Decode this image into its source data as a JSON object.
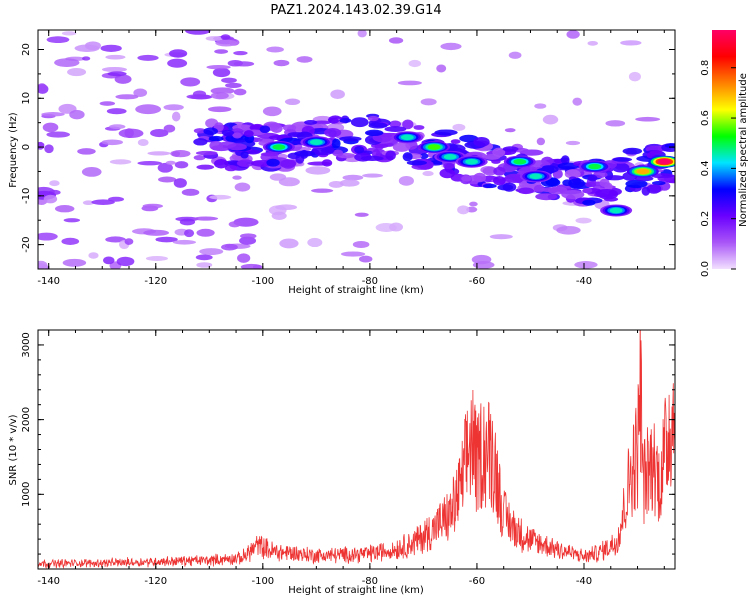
{
  "figure_title": "PAZ1.2024.143.02.39.G14",
  "chart_data": [
    {
      "type": "heatmap",
      "title": "PAZ1.2024.143.02.39.G14",
      "xlabel": "Height of straight line (km)",
      "ylabel": "Frequency (Hz)",
      "xlim": [
        -142,
        -23
      ],
      "ylim": [
        -25,
        24
      ],
      "x_ticks": [
        -140,
        -120,
        -100,
        -80,
        -60,
        -40
      ],
      "y_ticks": [
        -20,
        -10,
        0,
        10,
        20
      ],
      "colorbar": {
        "label": "Normalized spectral amplitude",
        "ticks": [
          0.0,
          0.2,
          0.4,
          0.6,
          0.8
        ],
        "range": [
          0,
          0.95
        ],
        "colormap": [
          "#f2e0ff",
          "#a955f7",
          "#6a00ff",
          "#0000ff",
          "#00e5ff",
          "#00ff00",
          "#ffff00",
          "#ff8000",
          "#ff0000",
          "#ff0066"
        ]
      },
      "ridge": {
        "x": [
          -142,
          -125,
          -110,
          -100,
          -90,
          -80,
          -70,
          -60,
          -50,
          -40,
          -30,
          -23
        ],
        "y": [
          -1,
          -1,
          0,
          0,
          1,
          2,
          0,
          -3,
          -5,
          -8,
          -5,
          -3
        ]
      },
      "hotspots": [
        {
          "x": -97,
          "y": 0,
          "amp": 0.5
        },
        {
          "x": -90,
          "y": 1,
          "amp": 0.45
        },
        {
          "x": -73,
          "y": 2,
          "amp": 0.45
        },
        {
          "x": -68,
          "y": 0,
          "amp": 0.55
        },
        {
          "x": -65,
          "y": -2,
          "amp": 0.45
        },
        {
          "x": -61,
          "y": -3,
          "amp": 0.45
        },
        {
          "x": -52,
          "y": -3,
          "amp": 0.5
        },
        {
          "x": -49,
          "y": -6,
          "amp": 0.45
        },
        {
          "x": -38,
          "y": -4,
          "amp": 0.5
        },
        {
          "x": -34,
          "y": -13,
          "amp": 0.45
        },
        {
          "x": -29,
          "y": -5,
          "amp": 0.7
        },
        {
          "x": -25,
          "y": -3,
          "amp": 0.95
        }
      ]
    },
    {
      "type": "line",
      "xlabel": "Height of straight line (km)",
      "ylabel": "SNR (10 * v/v)",
      "xlim": [
        -142,
        -23
      ],
      "ylim": [
        0,
        3200
      ],
      "x_ticks": [
        -140,
        -120,
        -100,
        -80,
        -60,
        -40
      ],
      "y_ticks": [
        1000,
        2000,
        3000
      ],
      "color": "#ee3333",
      "series": [
        {
          "x": [
            -142,
            -130,
            -120,
            -110,
            -104,
            -101,
            -98,
            -95,
            -90,
            -85,
            -80,
            -76,
            -72,
            -68,
            -65,
            -63,
            -61,
            -60,
            -59,
            -57,
            -55,
            -53,
            -50,
            -45,
            -40,
            -37,
            -34,
            -33,
            -32,
            -31,
            -30,
            -29.5,
            -29,
            -28,
            -27,
            -26,
            -25,
            -24,
            -23
          ],
          "y": [
            80,
            90,
            110,
            130,
            160,
            350,
            260,
            240,
            200,
            210,
            230,
            280,
            380,
            600,
            800,
            1200,
            2000,
            1500,
            1800,
            1700,
            800,
            600,
            420,
            300,
            180,
            250,
            400,
            700,
            1100,
            1550,
            1700,
            3000,
            1300,
            1450,
            1600,
            1300,
            1650,
            2200,
            2300
          ]
        }
      ]
    }
  ]
}
